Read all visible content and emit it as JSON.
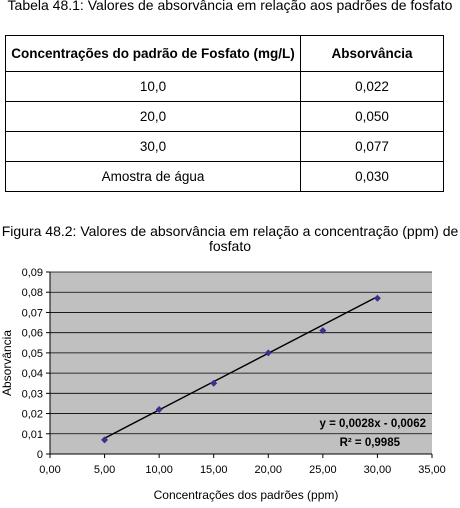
{
  "table": {
    "caption": "Tabela 48.1: Valores de absorvância em relação aos padrões de fosfato",
    "headers": [
      "Concentrações do padrão de Fosfato (mg/L)",
      "Absorvância"
    ],
    "rows": [
      [
        "10,0",
        "0,022"
      ],
      [
        "20,0",
        "0,050"
      ],
      [
        "30,0",
        "0,077"
      ],
      [
        "Amostra de água",
        "0,030"
      ]
    ]
  },
  "figure": {
    "caption": "Figura 48.2: Valores de absorvância em relação a concentração (ppm) de fosfato"
  },
  "chart_data": {
    "type": "scatter",
    "title": "",
    "xlabel": "Concentrações dos padrões (ppm)",
    "ylabel": "Absorvância",
    "xlim": [
      0,
      35
    ],
    "ylim": [
      0,
      0.09
    ],
    "x_ticks": [
      "0,00",
      "5,00",
      "10,00",
      "15,00",
      "20,00",
      "25,00",
      "30,00",
      "35,00"
    ],
    "y_ticks": [
      "0",
      "0,01",
      "0,02",
      "0,03",
      "0,04",
      "0,05",
      "0,06",
      "0,07",
      "0,08",
      "0,09"
    ],
    "grid": "horizontal",
    "background": "#c0c0c0",
    "series": [
      {
        "x": [
          5,
          10,
          15,
          20,
          25,
          30
        ],
        "y": [
          0.007,
          0.022,
          0.035,
          0.05,
          0.061,
          0.077
        ],
        "color": "#3b2f8f"
      }
    ],
    "trendline": {
      "slope": 0.0028,
      "intercept": -0.0062,
      "x_range": [
        5,
        30
      ],
      "equation": "y = 0,0028x - 0,0062",
      "r2_label": "R² = 0,9985"
    }
  }
}
